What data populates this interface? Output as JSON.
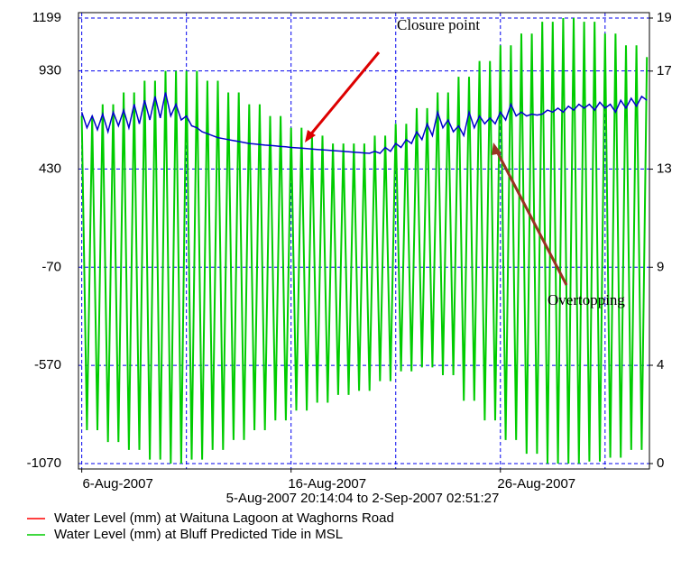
{
  "chart_data": {
    "type": "line",
    "xlabel": "5-Aug-2007 20:14:04 to  2-Sep-2007 02:51:27",
    "xlim": [
      "2007-08-05T20:14:04",
      "2007-09-02T02:51:27"
    ],
    "xticks": [
      {
        "value": "2007-08-06T00:00",
        "label": "6-Aug-2007"
      },
      {
        "value": "2007-08-16T00:00",
        "label": "16-Aug-2007"
      },
      {
        "value": "2007-08-26T00:00",
        "label": "26-Aug-2007"
      }
    ],
    "xgrid": [
      "2007-08-06T00:00",
      "2007-08-11T00:00",
      "2007-08-16T00:00",
      "2007-08-21T00:00",
      "2007-08-26T00:00",
      "2007-08-31T00:00"
    ],
    "ylim": [
      -1070,
      1199
    ],
    "yticks": [
      -1070,
      -570,
      -70,
      430,
      930,
      1199
    ],
    "y2lim": [
      0,
      19.4
    ],
    "y2ticks": [
      {
        "value": 0,
        "label": "0"
      },
      {
        "value": 4.28,
        "label": "4"
      },
      {
        "value": 8.55,
        "label": "9"
      },
      {
        "value": 12.82,
        "label": "13"
      },
      {
        "value": 17.09,
        "label": "17"
      },
      {
        "value": 19.4,
        "label": "19"
      }
    ],
    "grid": true,
    "legend": "bottom-left",
    "annotations": [
      {
        "text": "Closure point"
      },
      {
        "text": "Overtopping"
      }
    ],
    "x": [
      "2007-08-06T00:00",
      "2007-08-06T06:00",
      "2007-08-06T12:00",
      "2007-08-06T18:00",
      "2007-08-07T00:00",
      "2007-08-07T06:00",
      "2007-08-07T12:00",
      "2007-08-07T18:00",
      "2007-08-08T00:00",
      "2007-08-08T06:00",
      "2007-08-08T12:00",
      "2007-08-08T18:00",
      "2007-08-09T00:00",
      "2007-08-09T06:00",
      "2007-08-09T12:00",
      "2007-08-09T18:00",
      "2007-08-10T00:00",
      "2007-08-10T06:00",
      "2007-08-10T12:00",
      "2007-08-10T18:00",
      "2007-08-11T00:00",
      "2007-08-11T06:00",
      "2007-08-11T12:00",
      "2007-08-11T18:00",
      "2007-08-12T00:00",
      "2007-08-12T06:00",
      "2007-08-12T12:00",
      "2007-08-12T18:00",
      "2007-08-13T00:00",
      "2007-08-13T06:00",
      "2007-08-13T12:00",
      "2007-08-13T18:00",
      "2007-08-14T00:00",
      "2007-08-14T06:00",
      "2007-08-14T12:00",
      "2007-08-14T18:00",
      "2007-08-15T00:00",
      "2007-08-15T06:00",
      "2007-08-15T12:00",
      "2007-08-15T18:00",
      "2007-08-16T00:00",
      "2007-08-16T06:00",
      "2007-08-16T12:00",
      "2007-08-16T18:00",
      "2007-08-17T00:00",
      "2007-08-17T06:00",
      "2007-08-17T12:00",
      "2007-08-17T18:00",
      "2007-08-18T00:00",
      "2007-08-18T06:00",
      "2007-08-18T12:00",
      "2007-08-18T18:00",
      "2007-08-19T00:00",
      "2007-08-19T06:00",
      "2007-08-19T12:00",
      "2007-08-19T18:00",
      "2007-08-20T00:00",
      "2007-08-20T06:00",
      "2007-08-20T12:00",
      "2007-08-20T18:00",
      "2007-08-21T00:00",
      "2007-08-21T06:00",
      "2007-08-21T12:00",
      "2007-08-21T18:00",
      "2007-08-22T00:00",
      "2007-08-22T06:00",
      "2007-08-22T12:00",
      "2007-08-22T18:00",
      "2007-08-23T00:00",
      "2007-08-23T06:00",
      "2007-08-23T12:00",
      "2007-08-23T18:00",
      "2007-08-24T00:00",
      "2007-08-24T06:00",
      "2007-08-24T12:00",
      "2007-08-24T18:00",
      "2007-08-25T00:00",
      "2007-08-25T06:00",
      "2007-08-25T12:00",
      "2007-08-25T18:00",
      "2007-08-26T00:00",
      "2007-08-26T06:00",
      "2007-08-26T12:00",
      "2007-08-26T18:00",
      "2007-08-27T00:00",
      "2007-08-27T06:00",
      "2007-08-27T12:00",
      "2007-08-27T18:00",
      "2007-08-28T00:00",
      "2007-08-28T06:00",
      "2007-08-28T12:00",
      "2007-08-28T18:00",
      "2007-08-29T00:00",
      "2007-08-29T06:00",
      "2007-08-29T12:00",
      "2007-08-29T18:00",
      "2007-08-30T00:00",
      "2007-08-30T06:00",
      "2007-08-30T12:00",
      "2007-08-30T18:00",
      "2007-08-31T00:00",
      "2007-08-31T06:00",
      "2007-08-31T12:00",
      "2007-08-31T18:00",
      "2007-09-01T00:00",
      "2007-09-01T06:00",
      "2007-09-01T12:00",
      "2007-09-01T18:00",
      "2007-09-02T00:00"
    ],
    "series": [
      {
        "name": "Water Level (mm) at Bluff Predicted Tide in MSL",
        "color": "#00cc00",
        "legend_color": "#00cc00",
        "values": [
          700,
          -900,
          700,
          -900,
          760,
          -960,
          760,
          -960,
          820,
          -1000,
          820,
          -1000,
          880,
          -1050,
          880,
          -1050,
          930,
          -1070,
          930,
          -1070,
          930,
          -1050,
          930,
          -1050,
          880,
          -1000,
          880,
          -1000,
          820,
          -950,
          820,
          -950,
          760,
          -900,
          760,
          -900,
          700,
          -850,
          700,
          -850,
          640,
          -800,
          640,
          -800,
          600,
          -760,
          600,
          -760,
          560,
          -720,
          560,
          -720,
          560,
          -700,
          560,
          -700,
          600,
          -650,
          600,
          -650,
          660,
          -600,
          660,
          -600,
          740,
          -580,
          740,
          -580,
          820,
          -620,
          820,
          -620,
          900,
          -750,
          900,
          -750,
          980,
          -850,
          980,
          -850,
          1060,
          -950,
          1060,
          -950,
          1120,
          -1020,
          1120,
          -1020,
          1180,
          -1070,
          1180,
          -1070,
          1199,
          -1070,
          1199,
          -1070,
          1180,
          -1060,
          1180,
          -1060,
          1120,
          -1040,
          1120,
          -1040,
          1060,
          -1000,
          1060,
          -1000,
          1000
        ]
      },
      {
        "name": "Water Level (mm) at Waituna Lagoon at Waghorns Road",
        "color": "#0000cc",
        "legend_color": "#ff0000",
        "values": [
          720,
          640,
          700,
          630,
          710,
          620,
          720,
          650,
          730,
          640,
          760,
          660,
          780,
          680,
          800,
          690,
          820,
          700,
          760,
          680,
          700,
          650,
          640,
          620,
          610,
          600,
          590,
          585,
          580,
          575,
          570,
          565,
          560,
          558,
          555,
          552,
          550,
          548,
          545,
          543,
          540,
          538,
          536,
          534,
          532,
          530,
          528,
          526,
          524,
          522,
          520,
          518,
          516,
          514,
          512,
          510,
          520,
          510,
          540,
          520,
          560,
          540,
          580,
          560,
          620,
          580,
          660,
          600,
          720,
          640,
          680,
          620,
          650,
          600,
          720,
          640,
          700,
          660,
          690,
          660,
          720,
          680,
          760,
          700,
          720,
          700,
          710,
          705,
          710,
          730,
          720,
          740,
          720,
          750,
          730,
          760,
          740,
          760,
          730,
          770,
          740,
          760,
          720,
          780,
          740,
          790,
          750,
          800,
          780
        ]
      }
    ]
  }
}
